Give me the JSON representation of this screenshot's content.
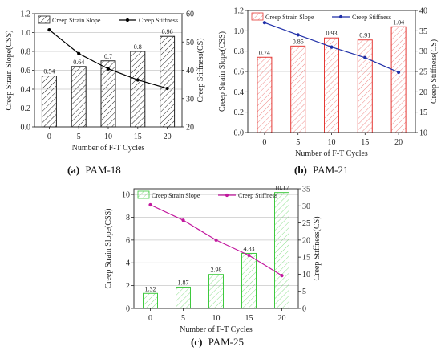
{
  "figure": {
    "captions": [
      {
        "letter": "(a)",
        "text": "PAM-18"
      },
      {
        "letter": "(b)",
        "text": "PAM-21"
      },
      {
        "letter": "(c)",
        "text": "PAM-25"
      }
    ]
  },
  "chart_data": [
    {
      "type": "bar+line",
      "name": "PAM-18",
      "color": "#222222",
      "line_color": "#000000",
      "categories": [
        "0",
        "5",
        "10",
        "15",
        "20"
      ],
      "xlabel": "Number of F-T Cycles",
      "ylabel": "Creep Strain Slope(CSS)",
      "ylabel_right": "Creep Stiffness(CS)",
      "ylim": [
        0,
        1.2
      ],
      "yticks": [
        "0.0",
        "0.2",
        "0.4",
        "0.6",
        "0.8",
        "1.0",
        "1.2"
      ],
      "ylim_right": [
        20,
        60
      ],
      "yticks_right": [
        "20",
        "30",
        "40",
        "50",
        "60"
      ],
      "grid": true,
      "legend_position": "top-left",
      "series": [
        {
          "name": "Creep Strain Slope",
          "kind": "bar",
          "axis": "left",
          "values": [
            0.54,
            0.64,
            0.7,
            0.8,
            0.96
          ],
          "labels": [
            "0.54",
            "0.64",
            "0.7",
            "0.8",
            "0.96"
          ]
        },
        {
          "name": "Creep Stiffness",
          "kind": "line",
          "axis": "right",
          "values": [
            54.3,
            45.9,
            40.5,
            36.6,
            33.6
          ]
        }
      ]
    },
    {
      "type": "bar+line",
      "name": "PAM-21",
      "color": "#e53935",
      "line_color": "#1f2fa8",
      "categories": [
        "0",
        "5",
        "10",
        "15",
        "20"
      ],
      "xlabel": "Number of F-T Cycles",
      "ylabel": "Creep Strain Slope(CSS)",
      "ylabel_right": "Creep Stiffness(CS)",
      "ylim": [
        0,
        1.2
      ],
      "yticks": [
        "0.0",
        "0.2",
        "0.4",
        "0.6",
        "0.8",
        "1.0",
        "1.2"
      ],
      "ylim_right": [
        10,
        40
      ],
      "yticks_right": [
        "10",
        "15",
        "20",
        "25",
        "30",
        "35",
        "40"
      ],
      "grid": true,
      "legend_position": "top-left",
      "series": [
        {
          "name": "Creep Strain Slope",
          "kind": "bar",
          "axis": "left",
          "values": [
            0.74,
            0.85,
            0.93,
            0.91,
            1.04
          ],
          "labels": [
            "0.74",
            "0.85",
            "0.93",
            "0.91",
            "1.04"
          ]
        },
        {
          "name": "Creep Stiffness",
          "kind": "line",
          "axis": "right",
          "values": [
            37.0,
            34.0,
            31.0,
            28.4,
            24.8
          ]
        }
      ]
    },
    {
      "type": "bar+line",
      "name": "PAM-25",
      "color": "#3ec93e",
      "line_color": "#c2189e",
      "categories": [
        "0",
        "5",
        "10",
        "15",
        "20"
      ],
      "xlabel": "Number of F-T Cycles",
      "ylabel": "Creep Strain Slope(CSS)",
      "ylabel_right": "Creep Stiffness(CS)",
      "ylim": [
        0,
        10.5
      ],
      "yticks": [
        "0",
        "2",
        "4",
        "6",
        "8",
        "10"
      ],
      "ylim_right": [
        0,
        35
      ],
      "yticks_right": [
        "0",
        "5",
        "10",
        "15",
        "20",
        "25",
        "30",
        "35"
      ],
      "grid": true,
      "legend_position": "top-left",
      "series": [
        {
          "name": "Creep Strain Slope",
          "kind": "bar",
          "axis": "left",
          "values": [
            1.32,
            1.87,
            2.98,
            4.83,
            10.17
          ],
          "labels": [
            "1.32",
            "1.87",
            "2.98",
            "4.83",
            "10.17"
          ]
        },
        {
          "name": "Creep Stiffness",
          "kind": "line",
          "axis": "right",
          "values": [
            30.3,
            25.8,
            20.0,
            15.5,
            9.6
          ]
        }
      ]
    }
  ]
}
